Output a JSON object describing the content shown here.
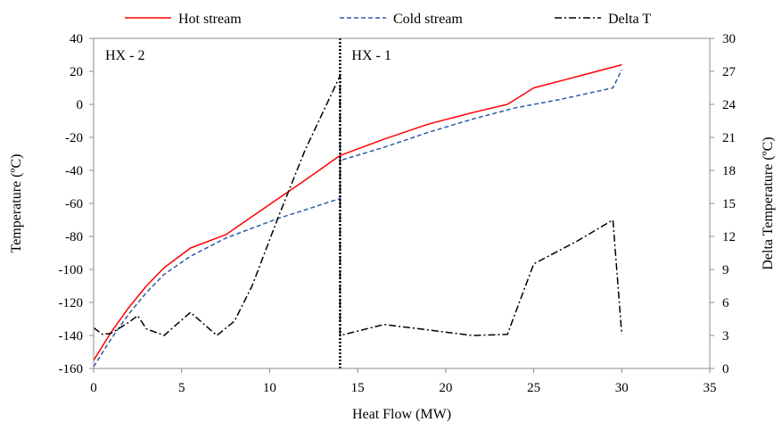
{
  "chart_data": {
    "type": "line",
    "title": "",
    "xlabel": "Heat Flow (MW)",
    "ylabel": "Temperature (ºC)",
    "y2label": "Delta Temperature (ºC)",
    "xlim": [
      0,
      35
    ],
    "xticks": [
      0,
      5,
      10,
      15,
      20,
      25,
      30,
      35
    ],
    "ylim": [
      -160,
      40
    ],
    "yticks": [
      -160,
      -140,
      -120,
      -100,
      -80,
      -60,
      -40,
      -20,
      0,
      20,
      40
    ],
    "y2lim": [
      0,
      30
    ],
    "y2ticks": [
      0,
      3,
      6,
      9,
      12,
      15,
      18,
      21,
      24,
      27,
      30
    ],
    "grid": false,
    "legend_position": "top",
    "divider_x": 14,
    "region_labels": [
      {
        "name": "hx2",
        "text": "HX - 2"
      },
      {
        "name": "hx1",
        "text": "HX - 1"
      }
    ],
    "series": [
      {
        "name": "Hot stream",
        "axis": "left",
        "color": "#ff0000",
        "dash": "solid",
        "x": [
          0,
          1,
          2,
          3,
          4,
          5.5,
          7.5,
          9,
          10.5,
          12,
          14,
          16.5,
          19,
          21.5,
          23.5,
          25,
          27.5,
          30
        ],
        "y": [
          -155,
          -138,
          -123,
          -110,
          -99,
          -87,
          -79,
          -68,
          -57,
          -46,
          -31,
          -21,
          -12,
          -5,
          0,
          10,
          17,
          24
        ]
      },
      {
        "name": "Cold stream",
        "axis": "left",
        "color": "#2e5aa8",
        "dash": "dashed",
        "x": [
          0,
          1,
          2,
          3,
          4,
          5.5,
          7.5,
          9,
          10.5,
          12,
          14,
          14,
          16.5,
          19,
          21.5,
          24,
          26.5,
          29.5,
          30
        ],
        "y": [
          -159,
          -142,
          -127,
          -114,
          -103,
          -92,
          -81,
          -75,
          -69,
          -64,
          -57,
          -34,
          -26,
          -17,
          -9,
          -2,
          3,
          10,
          21
        ]
      },
      {
        "name": "Delta T",
        "axis": "right",
        "color": "#000000",
        "dash": "dashdot",
        "x": [
          0,
          0.5,
          1,
          2,
          2.5,
          3,
          4,
          5.5,
          7,
          8,
          9,
          10.5,
          12,
          14,
          14,
          16.5,
          19,
          21.5,
          23.5,
          25,
          27.5,
          29.5,
          30
        ],
        "y": [
          3.7,
          3.1,
          3.2,
          4.2,
          4.8,
          3.6,
          3.0,
          5.1,
          3.0,
          4.3,
          7.5,
          13.8,
          19.8,
          26.6,
          3.0,
          4.0,
          3.5,
          3.0,
          3.1,
          9.5,
          11.6,
          13.5,
          3.1
        ]
      }
    ]
  }
}
